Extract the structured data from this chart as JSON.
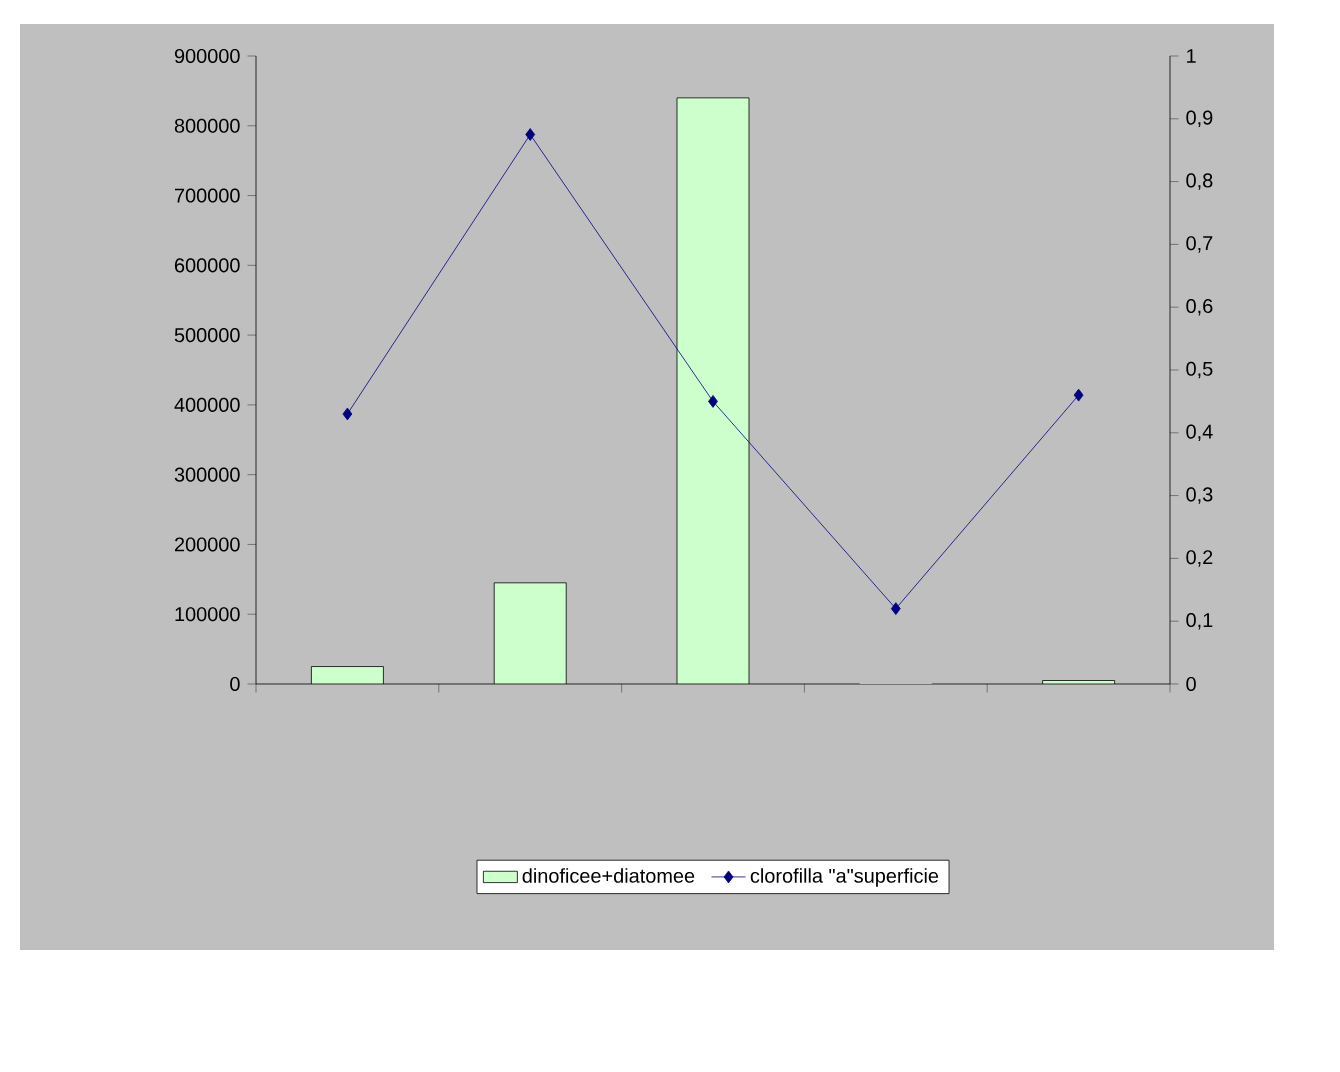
{
  "chart_data": {
    "type": "bar",
    "categories": [
      null,
      null,
      null,
      null,
      null
    ],
    "series": [
      {
        "name": "dinoficee+diatomee",
        "color": "#ccffcc",
        "values": [
          25000,
          145000,
          840000,
          0,
          5000
        ]
      },
      {
        "name": "clorofilla \"a\"superficie",
        "type": "line",
        "axis": "y2",
        "color": "#000080",
        "marker": "diamond",
        "values": [
          0.43,
          0.875,
          0.45,
          0.12,
          0.46
        ]
      }
    ],
    "ylim": [
      0,
      900000
    ],
    "yticks": [
      0,
      100000,
      200000,
      300000,
      400000,
      500000,
      600000,
      700000,
      800000,
      900000
    ],
    "y2lim": [
      0,
      1
    ],
    "y2ticks": [
      0,
      {
        "value": 0.1,
        "label": "0,1"
      },
      {
        "value": 0.2,
        "label": "0,2"
      },
      {
        "value": 0.3,
        "label": "0,3"
      },
      {
        "value": 0.4,
        "label": "0,4"
      },
      {
        "value": 0.5,
        "label": "0,5"
      },
      {
        "value": 0.6,
        "label": "0,6"
      },
      {
        "value": 0.7,
        "label": "0,7"
      },
      {
        "value": 0.8,
        "label": "0,8"
      },
      {
        "value": 0.9,
        "label": "0,9"
      },
      1
    ],
    "legend": "bottom"
  }
}
